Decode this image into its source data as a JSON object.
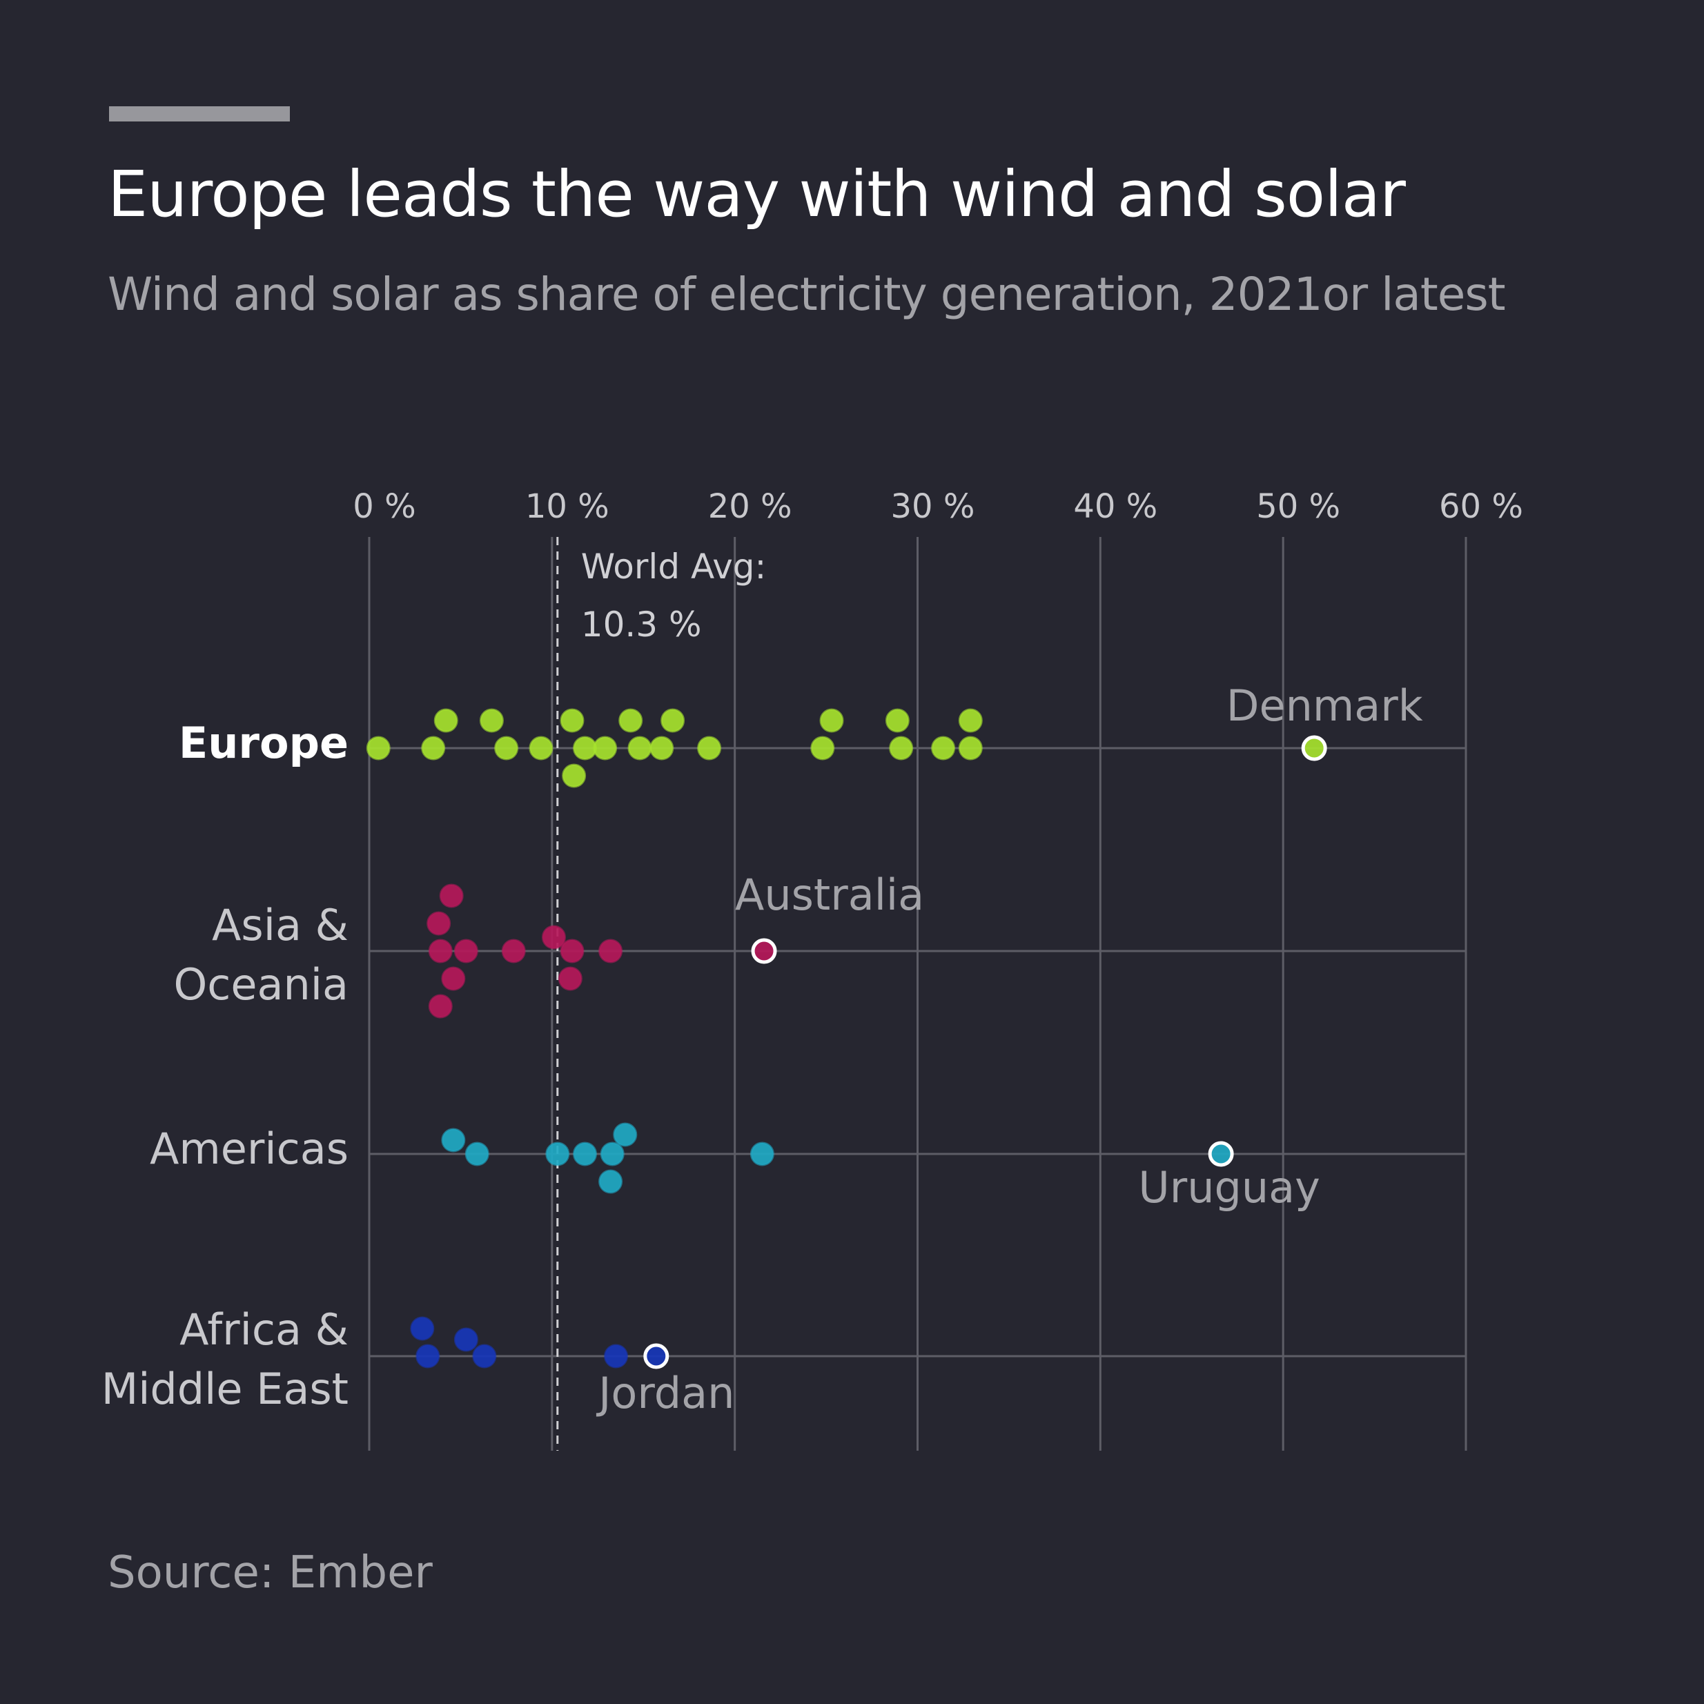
{
  "title": "Europe leads the way with wind and solar",
  "subtitle": "Wind and solar as share of electricity generation, 2021or latest",
  "source": "Source: Ember",
  "colors": {
    "background": "#262630",
    "gridline": "#5d5d66",
    "europe": "#a6e22e",
    "asia_oceania": "#b5185a",
    "americas": "#20a9c4",
    "africa_middle_east": "#1736b8"
  },
  "chart_data": {
    "type": "scatter",
    "xlim": [
      0,
      60
    ],
    "ticks": [
      0,
      10,
      20,
      30,
      40,
      50,
      60
    ],
    "tick_labels": [
      "0 %",
      "10 %",
      "20 %",
      "30 %",
      "40 %",
      "50 %",
      "60 %"
    ],
    "grid": true,
    "reference_line": {
      "value": 10.3,
      "label_line1": "World Avg:",
      "label_line2": "10.3 %"
    },
    "series": [
      {
        "name": "Europe",
        "highlight": "Denmark",
        "values": [
          0.5,
          3.5,
          4.2,
          6.7,
          7.5,
          9.4,
          11.2,
          11.1,
          11.8,
          12.9,
          14.3,
          14.8,
          16.6,
          16.0,
          18.6,
          24.8,
          25.3,
          28.9,
          29.1,
          31.4,
          32.9,
          32.9,
          51.7
        ],
        "offsets": [
          0,
          0,
          -1,
          -1,
          0,
          0,
          1,
          -1,
          0,
          0,
          -1,
          0,
          -1,
          0,
          0,
          0,
          -1,
          -1,
          0,
          0,
          -1,
          0,
          0
        ],
        "label": "Denmark",
        "label_value": 51.7
      },
      {
        "name": "Asia & Oceania",
        "highlight": "Australia",
        "values": [
          4.5,
          3.8,
          3.9,
          5.3,
          4.6,
          3.9,
          7.9,
          10.1,
          11.1,
          11.0,
          13.2,
          21.6
        ],
        "offsets": [
          -2,
          -1,
          0,
          0,
          1,
          2,
          0,
          -0.5,
          0,
          1,
          0,
          0
        ],
        "label": "Australia",
        "label_value": 21.6
      },
      {
        "name": "Americas",
        "highlight": "Uruguay",
        "values": [
          4.6,
          5.9,
          10.3,
          11.8,
          13.3,
          14.0,
          13.2,
          21.5,
          46.6
        ],
        "offsets": [
          -0.5,
          0,
          0,
          0,
          0,
          -0.7,
          1,
          0,
          0
        ],
        "label": "Uruguay",
        "label_value": 46.6
      },
      {
        "name": "Africa & Middle East",
        "highlight": "Jordan",
        "values": [
          2.9,
          3.2,
          5.3,
          6.3,
          13.5,
          15.7
        ],
        "offsets": [
          -1,
          0,
          -0.6,
          0,
          0,
          0
        ],
        "label": "Jordan",
        "label_value": 15.7
      }
    ]
  }
}
